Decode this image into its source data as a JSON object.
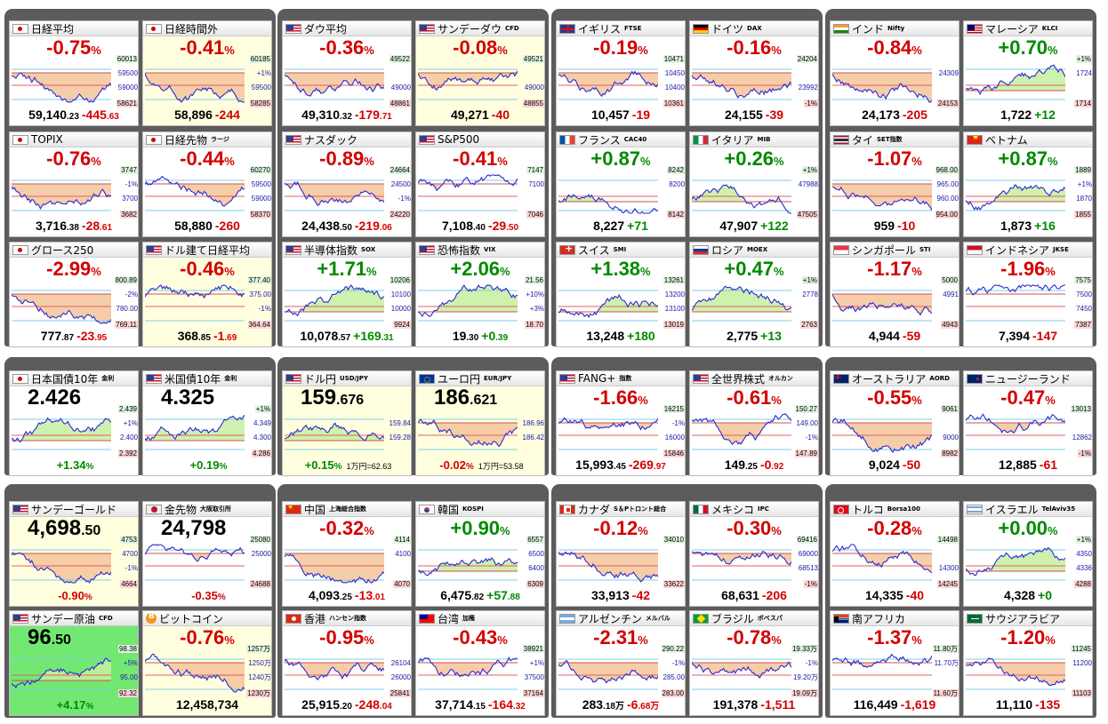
{
  "cards": [
    {
      "name": "日経平均",
      "sub": "",
      "flag": "jp",
      "pct": "-0.75",
      "dir": "dn",
      "price": "59,140",
      "price_dec": ".23",
      "chg": "-445",
      "chg_dec": ".63",
      "axis_top": "60013",
      "axis_t1": "59500",
      "axis_t2": "59000",
      "axis_low": "58621"
    },
    {
      "name": "日経時間外",
      "sub": "",
      "flag": "jp",
      "pct": "-0.41",
      "dir": "dn",
      "price": "58,896",
      "price_dec": "",
      "chg": "-244",
      "chg_dec": "",
      "axis_top": "60185",
      "axis_t1": "+1%",
      "axis_t2": "59500",
      "axis_low": "58285"
    },
    {
      "name": "TOPIX",
      "sub": "",
      "flag": "jp",
      "pct": "-0.76",
      "dir": "dn",
      "price": "3,716",
      "price_dec": ".38",
      "chg": "-28",
      "chg_dec": ".61",
      "axis_top": "3747",
      "axis_t1": "-1%",
      "axis_t2": "3700",
      "axis_low": "3682"
    },
    {
      "name": "日経先物",
      "sub": "ラージ",
      "flag": "jp",
      "pct": "-0.44",
      "dir": "dn",
      "price": "58,880",
      "price_dec": "",
      "chg": "-260",
      "chg_dec": "",
      "axis_top": "60270",
      "axis_t1": "59500",
      "axis_t2": "59000",
      "axis_low": "58370"
    },
    {
      "name": "グロース250",
      "sub": "",
      "flag": "jp",
      "pct": "-2.99",
      "dir": "dn",
      "price": "777",
      "price_dec": ".87",
      "chg": "-23",
      "chg_dec": ".95",
      "axis_top": "800.89",
      "axis_t1": "-2%",
      "axis_t2": "780.00",
      "axis_low": "769.11"
    },
    {
      "name": "ドル建て日経平均",
      "sub": "",
      "flag": "us",
      "pct": "-0.46",
      "dir": "dn",
      "price": "368",
      "price_dec": ".85",
      "chg": "-1",
      "chg_dec": ".69",
      "axis_top": "377.40",
      "axis_t1": "375.00",
      "axis_t2": "-1%",
      "axis_low": "364.64"
    },
    {
      "name": "ダウ平均",
      "sub": "",
      "flag": "us",
      "pct": "-0.36",
      "dir": "dn",
      "price": "49,310",
      "price_dec": ".32",
      "chg": "-179",
      "chg_dec": ".71",
      "axis_top": "49522",
      "axis_t1": "",
      "axis_t2": "49000",
      "axis_low": "48861"
    },
    {
      "name": "サンデーダウ",
      "sub": "CFD",
      "flag": "us",
      "pct": "-0.08",
      "dir": "dn",
      "price": "49,271",
      "price_dec": "",
      "chg": "-40",
      "chg_dec": "",
      "axis_top": "49521",
      "axis_t1": "",
      "axis_t2": "49000",
      "axis_low": "48855"
    },
    {
      "name": "ナスダック",
      "sub": "",
      "flag": "us",
      "pct": "-0.89",
      "dir": "dn",
      "price": "24,438",
      "price_dec": ".50",
      "chg": "-219",
      "chg_dec": ".06",
      "axis_top": "24664",
      "axis_t1": "24500",
      "axis_t2": "-1%",
      "axis_low": "24220"
    },
    {
      "name": "S&P500",
      "sub": "",
      "flag": "us",
      "pct": "-0.41",
      "dir": "dn",
      "price": "7,108",
      "price_dec": ".40",
      "chg": "-29",
      "chg_dec": ".50",
      "axis_top": "7147",
      "axis_t1": "7100",
      "axis_t2": "",
      "axis_low": "7046"
    },
    {
      "name": "半導体指数",
      "sub": "SOX",
      "flag": "us",
      "pct": "+1.71",
      "dir": "up",
      "price": "10,078",
      "price_dec": ".57",
      "chg": "+169",
      "chg_dec": ".31",
      "axis_top": "10206",
      "axis_t1": "10100",
      "axis_t2": "10000",
      "axis_low": "9924"
    },
    {
      "name": "恐怖指数",
      "sub": "VIX",
      "flag": "us",
      "pct": "+2.06",
      "dir": "up",
      "price": "19",
      "price_dec": ".30",
      "chg": "+0",
      "chg_dec": ".39",
      "axis_top": "21.56",
      "axis_t1": "+10%",
      "axis_t2": "+3%",
      "axis_low": "18.70"
    },
    {
      "name": "イギリス",
      "sub": "FTSE",
      "flag": "uk",
      "pct": "-0.19",
      "dir": "dn",
      "price": "10,457",
      "price_dec": "",
      "chg": "-19",
      "chg_dec": "",
      "axis_top": "10471",
      "axis_t1": "10450",
      "axis_t2": "10400",
      "axis_low": "10361"
    },
    {
      "name": "ドイツ",
      "sub": "DAX",
      "flag": "de",
      "pct": "-0.16",
      "dir": "dn",
      "price": "24,155",
      "price_dec": "",
      "chg": "-39",
      "chg_dec": "",
      "axis_top": "24204",
      "axis_t1": "",
      "axis_t2": "23992",
      "axis_low": "-1%"
    },
    {
      "name": "フランス",
      "sub": "CAC40",
      "flag": "fr",
      "pct": "+0.87",
      "dir": "up",
      "price": "8,227",
      "price_dec": "",
      "chg": "+71",
      "chg_dec": "",
      "axis_top": "8242",
      "axis_t1": "8200",
      "axis_t2": "",
      "axis_low": "8142"
    },
    {
      "name": "イタリア",
      "sub": "MIB",
      "flag": "it",
      "pct": "+0.26",
      "dir": "up",
      "price": "47,907",
      "price_dec": "",
      "chg": "+122",
      "chg_dec": "",
      "axis_top": "+1%",
      "axis_t1": "47988",
      "axis_t2": "",
      "axis_low": "47505"
    },
    {
      "name": "スイス",
      "sub": "SMI",
      "flag": "ch",
      "pct": "+1.38",
      "dir": "up",
      "price": "13,248",
      "price_dec": "",
      "chg": "+180",
      "chg_dec": "",
      "axis_top": "13261",
      "axis_t1": "13200",
      "axis_t2": "13100",
      "axis_low": "13019"
    },
    {
      "name": "ロシア",
      "sub": "MOEX",
      "flag": "ru",
      "pct": "+0.47",
      "dir": "up",
      "price": "2,775",
      "price_dec": "",
      "chg": "+13",
      "chg_dec": "",
      "axis_top": "+1%",
      "axis_t1": "2778",
      "axis_t2": "",
      "axis_low": "2763"
    },
    {
      "name": "インド",
      "sub": "Nifty",
      "flag": "in",
      "pct": "-0.84",
      "dir": "dn",
      "price": "24,173",
      "price_dec": "",
      "chg": "-205",
      "chg_dec": "",
      "axis_top": "",
      "axis_t1": "24309",
      "axis_t2": "",
      "axis_low": "24153"
    },
    {
      "name": "マレーシア",
      "sub": "KLCI",
      "flag": "my",
      "pct": "+0.70",
      "dir": "up",
      "price": "1,722",
      "price_dec": "",
      "chg": "+12",
      "chg_dec": "",
      "axis_top": "+1%",
      "axis_t1": "1724",
      "axis_t2": "",
      "axis_low": "1714"
    },
    {
      "name": "タイ",
      "sub": "SET指数",
      "flag": "th",
      "pct": "-1.07",
      "dir": "dn",
      "price": "959",
      "price_dec": "",
      "chg": "-10",
      "chg_dec": "",
      "axis_top": "968.00",
      "axis_t1": "965.00",
      "axis_t2": "960.00",
      "axis_low": "954.00"
    },
    {
      "name": "ベトナム",
      "sub": "",
      "flag": "vn",
      "pct": "+0.87",
      "dir": "up",
      "price": "1,873",
      "price_dec": "",
      "chg": "+16",
      "chg_dec": "",
      "axis_top": "1889",
      "axis_t1": "+1%",
      "axis_t2": "1870",
      "axis_low": "1855"
    },
    {
      "name": "シンガポール",
      "sub": "STI",
      "flag": "sg",
      "pct": "-1.17",
      "dir": "dn",
      "price": "4,944",
      "price_dec": "",
      "chg": "-59",
      "chg_dec": "",
      "axis_top": "5000",
      "axis_t1": "4991",
      "axis_t2": "",
      "axis_low": "4943"
    },
    {
      "name": "インドネシア",
      "sub": "JKSE",
      "flag": "id",
      "pct": "-1.96",
      "dir": "dn",
      "price": "7,394",
      "price_dec": "",
      "chg": "-147",
      "chg_dec": "",
      "axis_top": "7575",
      "axis_t1": "7500",
      "axis_t2": "7450",
      "axis_low": "7387"
    },
    {
      "name": "日本国債10年",
      "sub": "金利",
      "flag": "jp",
      "big": "2.426",
      "big_dec": "",
      "bottom_chg": "+1.34",
      "dir": "up",
      "axis_top": "2.439",
      "axis_t1": "+1%",
      "axis_t2": "2.400",
      "axis_low": "2.392"
    },
    {
      "name": "米国債10年",
      "sub": "金利",
      "flag": "us",
      "big": "4.325",
      "big_dec": "",
      "bottom_chg": "+0.19",
      "dir": "up",
      "axis_top": "+1%",
      "axis_t1": "4.349",
      "axis_t2": "4.300",
      "axis_low": "4.286"
    },
    {
      "name": "ドル円",
      "sub": "USD/JPY",
      "flag": "us",
      "big": "159",
      "big_dec": ".676",
      "bottom_chg": "+0.15",
      "note": "1万円=62.63",
      "dir": "up",
      "axis_top": "",
      "axis_t1": "159.84",
      "axis_t2": "159.28",
      "axis_low": ""
    },
    {
      "name": "ユーロ円",
      "sub": "EUR/JPY",
      "flag": "eu",
      "big": "186",
      "big_dec": ".621",
      "bottom_chg": "-0.02",
      "note": "1万円=53.58",
      "dir": "dn",
      "axis_top": "",
      "axis_t1": "186.96",
      "axis_t2": "186.42",
      "axis_low": ""
    },
    {
      "name": "FANG+",
      "sub": "指数",
      "flag": "us",
      "pct": "-1.66",
      "dir": "dn",
      "price": "15,993",
      "price_dec": ".45",
      "chg": "-269",
      "chg_dec": ".97",
      "axis_top": "16215",
      "axis_t1": "-1%",
      "axis_t2": "16000",
      "axis_low": "15846"
    },
    {
      "name": "全世界株式",
      "sub": "オルカン",
      "flag": "us",
      "pct": "-0.61",
      "dir": "dn",
      "price": "149",
      "price_dec": ".25",
      "chg": "-0",
      "chg_dec": ".92",
      "axis_top": "150.27",
      "axis_t1": "149.00",
      "axis_t2": "-1%",
      "axis_low": "147.89"
    },
    {
      "name": "オーストラリア",
      "sub": "AORD",
      "flag": "au",
      "pct": "-0.55",
      "dir": "dn",
      "price": "9,024",
      "price_dec": "",
      "chg": "-50",
      "chg_dec": "",
      "axis_top": "9061",
      "axis_t1": "",
      "axis_t2": "9000",
      "axis_low": "8982"
    },
    {
      "name": "ニュージーランド",
      "sub": "",
      "flag": "nz",
      "pct": "-0.47",
      "dir": "dn",
      "price": "12,885",
      "price_dec": "",
      "chg": "-61",
      "chg_dec": "",
      "axis_top": "13013",
      "axis_t1": "",
      "axis_t2": "12862",
      "axis_low": "-1%"
    },
    {
      "name": "サンデーゴールド",
      "sub": "",
      "flag": "us",
      "big": "4,698",
      "big_dec": ".50",
      "bottom_chg": "-0.90",
      "dir": "dn",
      "axis_top": "4753",
      "axis_t1": "4700",
      "axis_t2": "-1%",
      "axis_low": "4664"
    },
    {
      "name": "金先物",
      "sub": "大阪取引所",
      "flag": "gold",
      "big": "24,798",
      "big_dec": "",
      "bottom_chg": "-0.35",
      "dir": "dn",
      "axis_top": "25080",
      "axis_t1": "25000",
      "axis_t2": "",
      "axis_low": "24688"
    },
    {
      "name": "サンデー原油",
      "sub": "CFD",
      "flag": "us",
      "big": "96",
      "big_dec": ".50",
      "bottom_chg": "+4.17",
      "dir": "up",
      "axis_top": "98.38",
      "axis_t1": "+5%",
      "axis_t2": "95.00",
      "axis_low": "92.32"
    },
    {
      "name": "ビットコイン",
      "sub": "",
      "flag": "btc",
      "pct": "-0.76",
      "dir": "dn",
      "price": "12,458,734",
      "price_dec": "",
      "chg": "",
      "chg_dec": "",
      "axis_top": "1257万",
      "axis_t1": "1250万",
      "axis_t2": "1240万",
      "axis_low": "1230万"
    },
    {
      "name": "中国",
      "sub": "上海総合指数",
      "flag": "cn",
      "pct": "-0.32",
      "dir": "dn",
      "price": "4,093",
      "price_dec": ".25",
      "chg": "-13",
      "chg_dec": ".01",
      "axis_top": "4114",
      "axis_t1": "4100",
      "axis_t2": "",
      "axis_low": "4070"
    },
    {
      "name": "韓国",
      "sub": "KOSPI",
      "flag": "kr",
      "pct": "+0.90",
      "dir": "up",
      "price": "6,475",
      "price_dec": ".82",
      "chg": "+57",
      "chg_dec": ".88",
      "axis_top": "6557",
      "axis_t1": "6500",
      "axis_t2": "6400",
      "axis_low": "6309"
    },
    {
      "name": "香港",
      "sub": "ハンセン指数",
      "flag": "hk",
      "pct": "-0.95",
      "dir": "dn",
      "price": "25,915",
      "price_dec": ".20",
      "chg": "-248",
      "chg_dec": ".04",
      "axis_top": "",
      "axis_t1": "26104",
      "axis_t2": "26000",
      "axis_low": "25841"
    },
    {
      "name": "台湾",
      "sub": "加権",
      "flag": "tw",
      "pct": "-0.43",
      "dir": "dn",
      "price": "37,714",
      "price_dec": ".15",
      "chg": "-164",
      "chg_dec": ".32",
      "axis_top": "38921",
      "axis_t1": "+1%",
      "axis_t2": "37500",
      "axis_low": "37164"
    },
    {
      "name": "カナダ",
      "sub": "S＆Pトロント総合",
      "flag": "ca",
      "pct": "-0.12",
      "dir": "dn",
      "price": "33,913",
      "price_dec": "",
      "chg": "-42",
      "chg_dec": "",
      "axis_top": "34010",
      "axis_t1": "",
      "axis_t2": "",
      "axis_low": "33622"
    },
    {
      "name": "メキシコ",
      "sub": "IPC",
      "flag": "mx",
      "pct": "-0.30",
      "dir": "dn",
      "price": "68,631",
      "price_dec": "",
      "chg": "-206",
      "chg_dec": "",
      "axis_top": "69416",
      "axis_t1": "69000",
      "axis_t2": "68513",
      "axis_low": "-1%"
    },
    {
      "name": "アルゼンチン",
      "sub": "メルバル",
      "flag": "ar",
      "pct": "-2.31",
      "dir": "dn",
      "price": "283",
      "price_dec": ".18万",
      "chg": "-6",
      "chg_dec": ".68万",
      "axis_top": "290.22",
      "axis_t1": "-1%",
      "axis_t2": "285.00",
      "axis_low": "283.00"
    },
    {
      "name": "ブラジル",
      "sub": "ボベスパ",
      "flag": "br",
      "pct": "-0.78",
      "dir": "dn",
      "price": "191,378",
      "price_dec": "",
      "chg": "-1,511",
      "chg_dec": "",
      "axis_top": "19.33万",
      "axis_t1": "-1%",
      "axis_t2": "19.20万",
      "axis_low": "19.09万"
    },
    {
      "name": "トルコ",
      "sub": "Borsa100",
      "flag": "tr",
      "pct": "-0.28",
      "dir": "dn",
      "price": "14,335",
      "price_dec": "",
      "chg": "-40",
      "chg_dec": "",
      "axis_top": "14498",
      "axis_t1": "",
      "axis_t2": "14300",
      "axis_low": "14245"
    },
    {
      "name": "イスラエル",
      "sub": "TelAviv35",
      "flag": "il",
      "pct": "+0.00",
      "dir": "up",
      "price": "4,328",
      "price_dec": "",
      "chg": "+0",
      "chg_dec": "",
      "axis_top": "+1%",
      "axis_t1": "4350",
      "axis_t2": "4336",
      "axis_low": "4288"
    },
    {
      "name": "南アフリカ",
      "sub": "",
      "flag": "za",
      "pct": "-1.37",
      "dir": "dn",
      "price": "116,449",
      "price_dec": "",
      "chg": "-1,619",
      "chg_dec": "",
      "axis_top": "11.80万",
      "axis_t1": "11.70万",
      "axis_t2": "",
      "axis_low": "11.60万"
    },
    {
      "name": "サウジアラビア",
      "sub": "",
      "flag": "sa",
      "pct": "-1.20",
      "dir": "dn",
      "price": "11,110",
      "price_dec": "",
      "chg": "-135",
      "chg_dec": "",
      "axis_top": "11245",
      "axis_t1": "11200",
      "axis_t2": "",
      "axis_low": "11103"
    }
  ]
}
